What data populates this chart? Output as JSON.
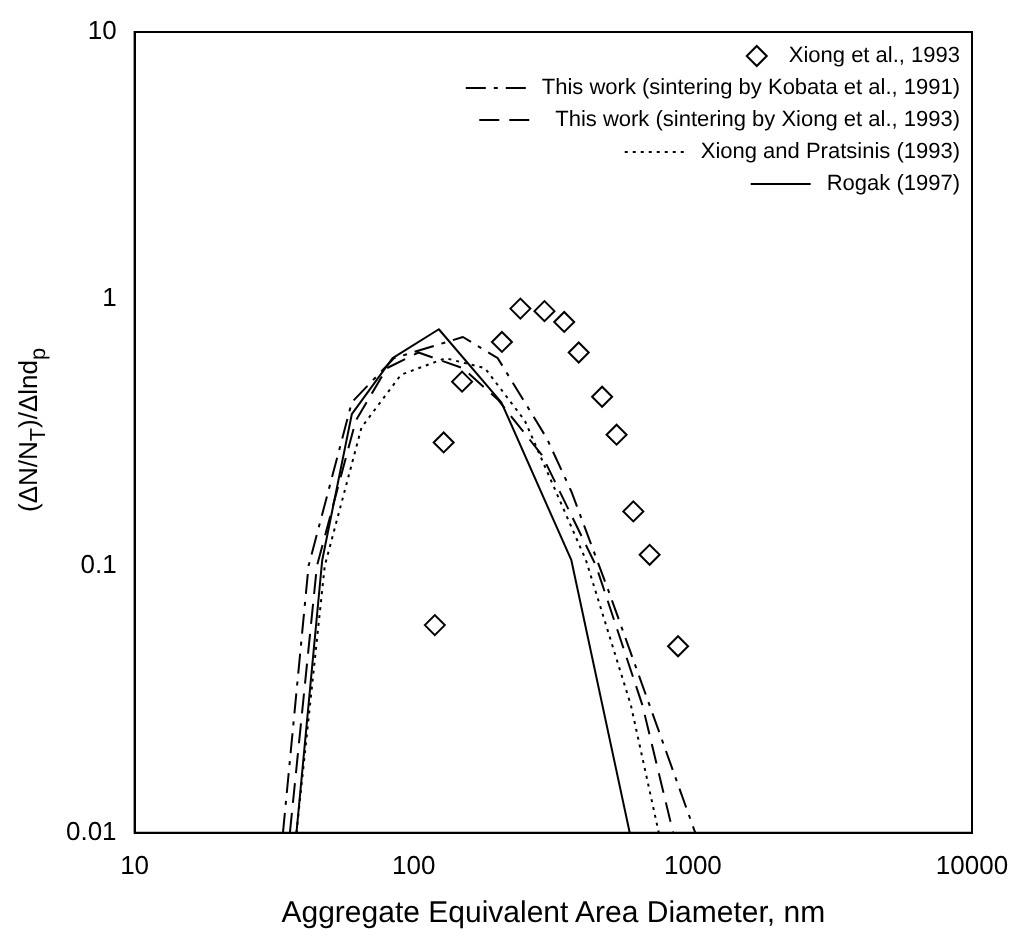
{
  "chart_data": {
    "type": "line",
    "xlabel": "Aggregate Equivalent Area Diameter, nm",
    "ylabel": "(ΔN/N$_{T}$)/Δlnd$_{p}$",
    "log": "xy",
    "xlim": [
      10,
      10000
    ],
    "ylim": [
      0.01,
      10
    ],
    "xticks": [
      10,
      100,
      1000,
      10000
    ],
    "yticks": [
      0.01,
      0.1,
      1,
      10
    ],
    "grid": false,
    "legend": "top right",
    "series": [
      {
        "name": "Xiong et al., 1993",
        "type": "scatter",
        "marker": "diamond",
        "color": "#000000",
        "x": [
          119,
          128,
          149,
          207,
          241,
          294,
          346,
          390,
          473,
          533,
          612,
          700,
          885
        ],
        "values": [
          0.06,
          0.29,
          0.49,
          0.69,
          0.92,
          0.9,
          0.82,
          0.63,
          0.43,
          0.31,
          0.16,
          0.11,
          0.05
        ]
      },
      {
        "name": "This work (sintering by Kobata et al., 1991)",
        "line_style": "dashdot",
        "marker": "none",
        "color": "#000000",
        "x": [
          34,
          42,
          60,
          85,
          150,
          200,
          300,
          367,
          500,
          700,
          1020
        ],
        "values": [
          0.01,
          0.1,
          0.41,
          0.6,
          0.72,
          0.6,
          0.3,
          0.19,
          0.08,
          0.03,
          0.01
        ]
      },
      {
        "name": "This work (sintering by Xiong et al., 1993)",
        "line_style": "dashed",
        "marker": "none",
        "color": "#000000",
        "x": [
          36,
          45,
          62,
          80,
          104,
          150,
          200,
          288,
          450,
          660,
          850
        ],
        "values": [
          0.01,
          0.1,
          0.35,
          0.55,
          0.63,
          0.55,
          0.42,
          0.26,
          0.1,
          0.03,
          0.01
        ]
      },
      {
        "name": "Xiong and Pratsinis (1993)",
        "line_style": "dotted",
        "marker": "none",
        "color": "#000000",
        "x": [
          38,
          48,
          65,
          90,
          130,
          180,
          250,
          414,
          600,
          755
        ],
        "values": [
          0.01,
          0.1,
          0.33,
          0.52,
          0.6,
          0.55,
          0.35,
          0.105,
          0.03,
          0.01
        ]
      },
      {
        "name": "Rogak (1997)",
        "line_style": "solid",
        "marker": "none",
        "color": "#000000",
        "x": [
          38,
          47,
          60,
          84,
          123,
          206,
          367,
          594
        ],
        "values": [
          0.01,
          0.105,
          0.37,
          0.6,
          0.77,
          0.41,
          0.105,
          0.01
        ]
      }
    ]
  }
}
